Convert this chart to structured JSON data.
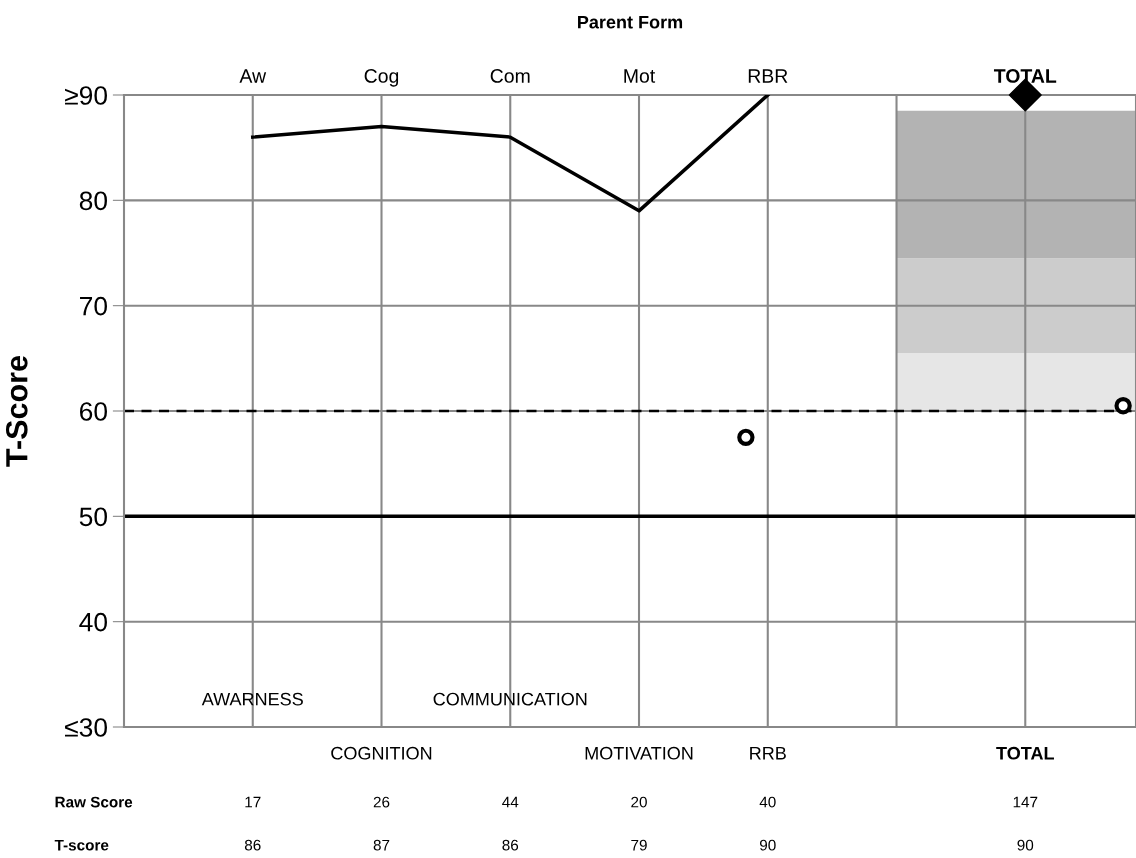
{
  "chart_data": {
    "type": "line",
    "title": "Parent Form",
    "ylabel": "T-Score",
    "categories": [
      "Aw",
      "Cog",
      "Com",
      "Mot",
      "RBR",
      null,
      "TOTAL"
    ],
    "ylim": [
      30,
      90
    ],
    "yticks": [
      {
        "value": 30,
        "label": "≤30"
      },
      40,
      50,
      60,
      70,
      80,
      {
        "value": 90,
        "label": "≥90"
      }
    ],
    "grid": true,
    "series": [
      {
        "color": "#000000",
        "line_style": "solid",
        "values": [
          86,
          87,
          86,
          79,
          90,
          null,
          null
        ]
      },
      {
        "type": "scatter",
        "color": "#000000",
        "marker": "diamond",
        "values": [
          null,
          null,
          null,
          null,
          null,
          null,
          90
        ]
      }
    ],
    "ref_lines": [
      {
        "axis": "y",
        "value": 60,
        "label": null,
        "color": "#000000",
        "line_style": "dashed"
      },
      {
        "axis": "y",
        "value": 50,
        "label": null,
        "color": "#000000",
        "line_style": "solid"
      }
    ],
    "bands": [
      {
        "axis": "y",
        "from": 60,
        "to": 65.5,
        "label": null,
        "color": "#e6e6e6"
      },
      {
        "axis": "y",
        "from": 65.5,
        "to": 74.5,
        "label": null,
        "color": "#cccccc"
      },
      {
        "axis": "y",
        "from": 74.5,
        "to": 88.5,
        "label": null,
        "color": "#b3b3b3"
      }
    ],
    "annotations": [
      "AWARNESS",
      "COMMUNICATION",
      "COGNITION",
      "MOTIVATION",
      "RRB",
      "TOTAL",
      "Raw Score",
      "17",
      "26",
      "44",
      "20",
      "40",
      "147",
      "T-score",
      "86",
      "87",
      "86",
      "79",
      "90",
      "90"
    ]
  }
}
